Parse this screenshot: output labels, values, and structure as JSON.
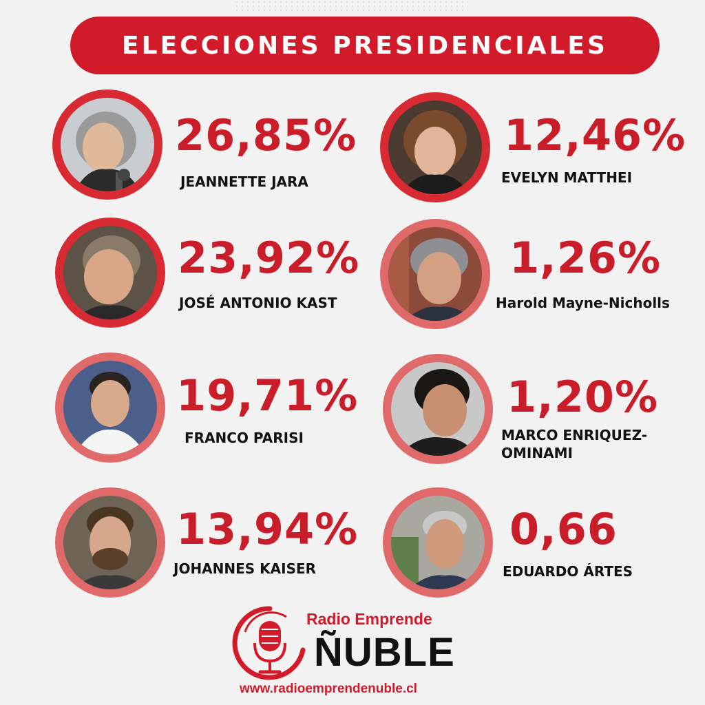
{
  "header": {
    "title": "ELECCIONES PRESIDENCIALES"
  },
  "colors": {
    "accent": "#d11b2b",
    "ring_dark": "#d82a33",
    "ring_light": "#e06a6a",
    "background": "#f2f2f2"
  },
  "candidates": [
    {
      "percent": "26,85%",
      "name": "JEANNETTE JARA"
    },
    {
      "percent": "12,46%",
      "name": "EVELYN MATTHEI"
    },
    {
      "percent": "23,92%",
      "name": "JOSÉ ANTONIO KAST"
    },
    {
      "percent": "1,26%",
      "name": "Harold Mayne-Nicholls"
    },
    {
      "percent": "19,71%",
      "name": "FRANCO PARISI"
    },
    {
      "percent": "1,20%",
      "name": "MARCO ENRIQUEZ-",
      "name2": "OMINAMI"
    },
    {
      "percent": "13,94%",
      "name": "JOHANNES KAISER"
    },
    {
      "percent": "0,66",
      "name": "EDUARDO ÁRTES"
    }
  ],
  "logo": {
    "brand": "Radio Emprende",
    "wordmark": "ÑUBLE",
    "url": "www.radioemprendenuble.cl",
    "icon": "microphone-icon"
  }
}
